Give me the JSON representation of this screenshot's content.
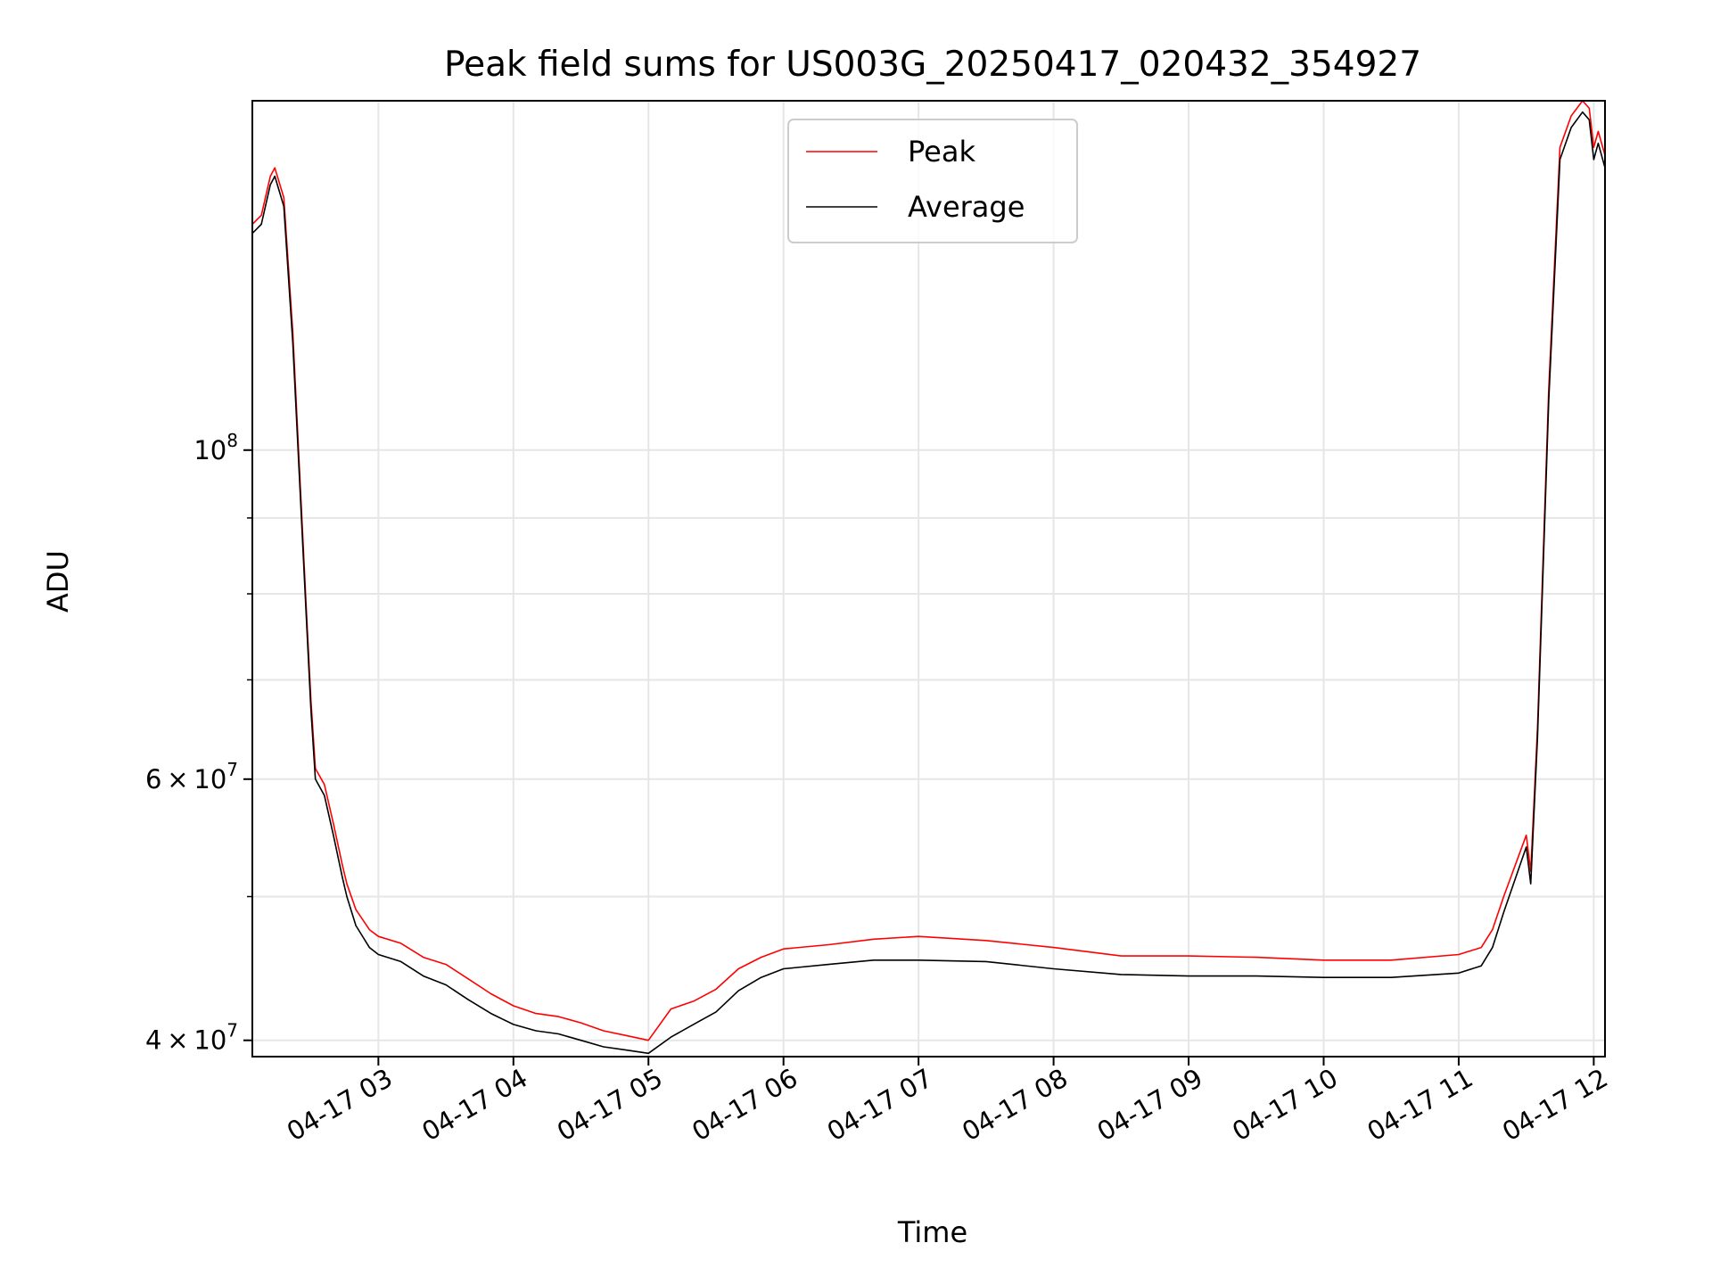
{
  "chart_data": {
    "type": "line",
    "title": "Peak field sums for US003G_20250417_020432_354927",
    "xlabel": "Time",
    "ylabel": "ADU",
    "yscale": "log",
    "xlim": [
      "04-17 02:04",
      "04-17 12:05"
    ],
    "ylim": [
      39000000,
      172000000
    ],
    "grid": true,
    "legend_position": "upper center",
    "x_ticks": [
      "04-17 03",
      "04-17 04",
      "04-17 05",
      "04-17 06",
      "04-17 07",
      "04-17 08",
      "04-17 09",
      "04-17 10",
      "04-17 11",
      "04-17 12"
    ],
    "y_ticks": [
      {
        "value": 40000000,
        "base": "4",
        "exp": "7"
      },
      {
        "value": 60000000,
        "base": "6",
        "exp": "7"
      },
      {
        "value": 100000000,
        "base": "",
        "exp": "8"
      }
    ],
    "y_minor_ticks": [
      50000000,
      70000000,
      80000000,
      90000000
    ],
    "series": [
      {
        "name": "Peak",
        "color": "#ff0000",
        "x": [
          "02:04",
          "02:08",
          "02:12",
          "02:14",
          "02:18",
          "02:22",
          "02:28",
          "02:30",
          "02:32",
          "02:36",
          "02:40",
          "02:44",
          "02:46",
          "02:50",
          "02:56",
          "03:00",
          "03:10",
          "03:20",
          "03:30",
          "03:40",
          "03:50",
          "04:00",
          "04:10",
          "04:20",
          "04:30",
          "04:40",
          "04:50",
          "05:00",
          "05:10",
          "05:20",
          "05:30",
          "05:40",
          "05:50",
          "06:00",
          "06:20",
          "06:40",
          "07:00",
          "07:30",
          "08:00",
          "08:30",
          "09:00",
          "09:30",
          "10:00",
          "10:30",
          "11:00",
          "11:10",
          "11:15",
          "11:20",
          "11:30",
          "11:32",
          "11:35",
          "11:40",
          "11:45",
          "11:50",
          "11:55",
          "11:58",
          "12:00",
          "12:02",
          "12:05"
        ],
        "y": [
          142000000,
          144000000,
          153000000,
          155000000,
          148000000,
          120000000,
          78000000,
          68000000,
          61000000,
          59500000,
          56000000,
          52500000,
          51000000,
          49000000,
          47500000,
          47000000,
          46500000,
          45500000,
          45000000,
          44000000,
          43000000,
          42200000,
          41700000,
          41500000,
          41100000,
          40600000,
          40300000,
          40000000,
          42000000,
          42500000,
          43300000,
          44700000,
          45500000,
          46100000,
          46400000,
          46800000,
          47000000,
          46700000,
          46200000,
          45600000,
          45600000,
          45500000,
          45300000,
          45300000,
          45700000,
          46200000,
          47500000,
          50000000,
          55000000,
          52000000,
          65000000,
          110000000,
          160000000,
          168000000,
          172000000,
          170000000,
          160000000,
          164000000,
          158000000
        ]
      },
      {
        "name": "Average",
        "color": "#000000",
        "x": [
          "02:04",
          "02:08",
          "02:12",
          "02:14",
          "02:18",
          "02:22",
          "02:28",
          "02:30",
          "02:32",
          "02:36",
          "02:40",
          "02:44",
          "02:46",
          "02:50",
          "02:56",
          "03:00",
          "03:10",
          "03:20",
          "03:30",
          "03:40",
          "03:50",
          "04:00",
          "04:10",
          "04:20",
          "04:30",
          "04:40",
          "04:50",
          "05:00",
          "05:10",
          "05:20",
          "05:30",
          "05:40",
          "05:50",
          "06:00",
          "06:20",
          "06:40",
          "07:00",
          "07:30",
          "08:00",
          "08:30",
          "09:00",
          "09:30",
          "10:00",
          "10:30",
          "11:00",
          "11:10",
          "11:15",
          "11:20",
          "11:30",
          "11:32",
          "11:35",
          "11:40",
          "11:45",
          "11:50",
          "11:55",
          "11:58",
          "12:00",
          "12:02",
          "12:05"
        ],
        "y": [
          140000000,
          142000000,
          151000000,
          153000000,
          146000000,
          118000000,
          77000000,
          67000000,
          60000000,
          58500000,
          55000000,
          51500000,
          50000000,
          47800000,
          46200000,
          45700000,
          45200000,
          44200000,
          43600000,
          42600000,
          41700000,
          41000000,
          40600000,
          40400000,
          40000000,
          39600000,
          39400000,
          39200000,
          40200000,
          41000000,
          41800000,
          43200000,
          44100000,
          44700000,
          45000000,
          45300000,
          45300000,
          45200000,
          44700000,
          44300000,
          44200000,
          44200000,
          44100000,
          44100000,
          44400000,
          44900000,
          46200000,
          48800000,
          54000000,
          51000000,
          64000000,
          108000000,
          157000000,
          165000000,
          169000000,
          167000000,
          157000000,
          161000000,
          155000000
        ]
      }
    ]
  }
}
